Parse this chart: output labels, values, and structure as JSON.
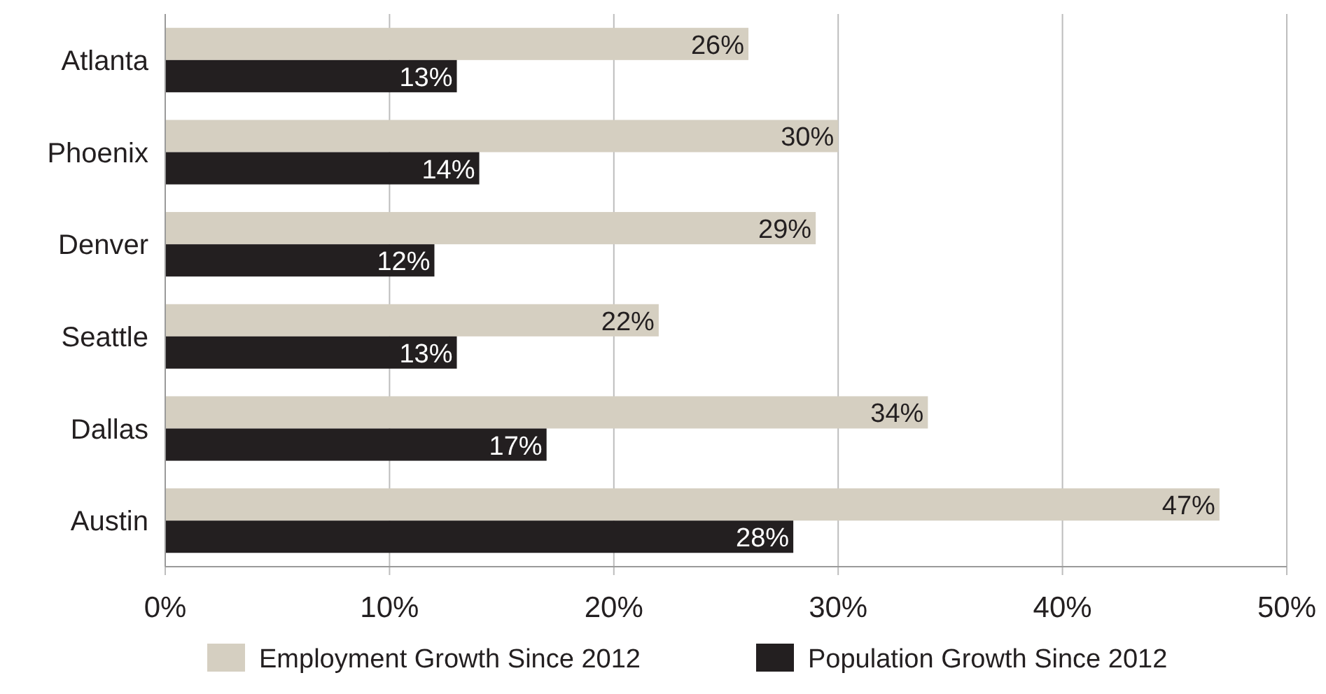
{
  "chart_data": {
    "type": "bar",
    "orientation": "horizontal",
    "categories": [
      "Atlanta",
      "Phoenix",
      "Denver",
      "Seattle",
      "Dallas",
      "Austin"
    ],
    "series": [
      {
        "name": "Employment Growth Since 2012",
        "color": "#d5cfc1",
        "values": [
          26,
          30,
          29,
          22,
          34,
          47
        ],
        "value_labels": [
          "26%",
          "30%",
          "29%",
          "22%",
          "34%",
          "47%"
        ]
      },
      {
        "name": "Population Growth Since 2012",
        "color": "#231f20",
        "values": [
          13,
          14,
          12,
          13,
          17,
          28
        ],
        "value_labels": [
          "13%",
          "14%",
          "12%",
          "13%",
          "17%",
          "28%"
        ]
      }
    ],
    "xlim": [
      0,
      50
    ],
    "xticks": [
      {
        "value": 0,
        "label": "0%"
      },
      {
        "value": 10,
        "label": "10%"
      },
      {
        "value": 20,
        "label": "20%"
      },
      {
        "value": 30,
        "label": "30%"
      },
      {
        "value": 40,
        "label": "40%"
      },
      {
        "value": 50,
        "label": "50%"
      }
    ],
    "grid": "x",
    "legend": "bottom"
  }
}
